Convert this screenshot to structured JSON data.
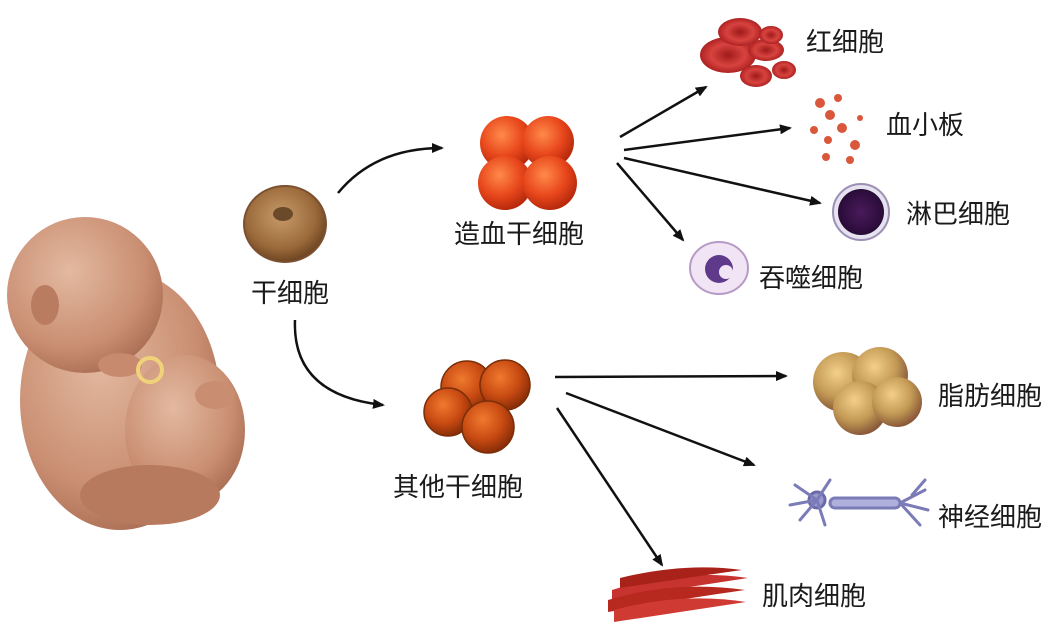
{
  "labels": {
    "stem_cell": "干细胞",
    "hematopoietic_stem_cell": "造血干细胞",
    "other_stem_cell": "其他干细胞",
    "red_blood_cell": "红细胞",
    "platelet": "血小板",
    "lymphocyte": "淋巴细胞",
    "macrophage": "吞噬细胞",
    "fat_cell": "脂肪细胞",
    "nerve_cell": "神经细胞",
    "muscle_cell": "肌肉细胞"
  }
}
